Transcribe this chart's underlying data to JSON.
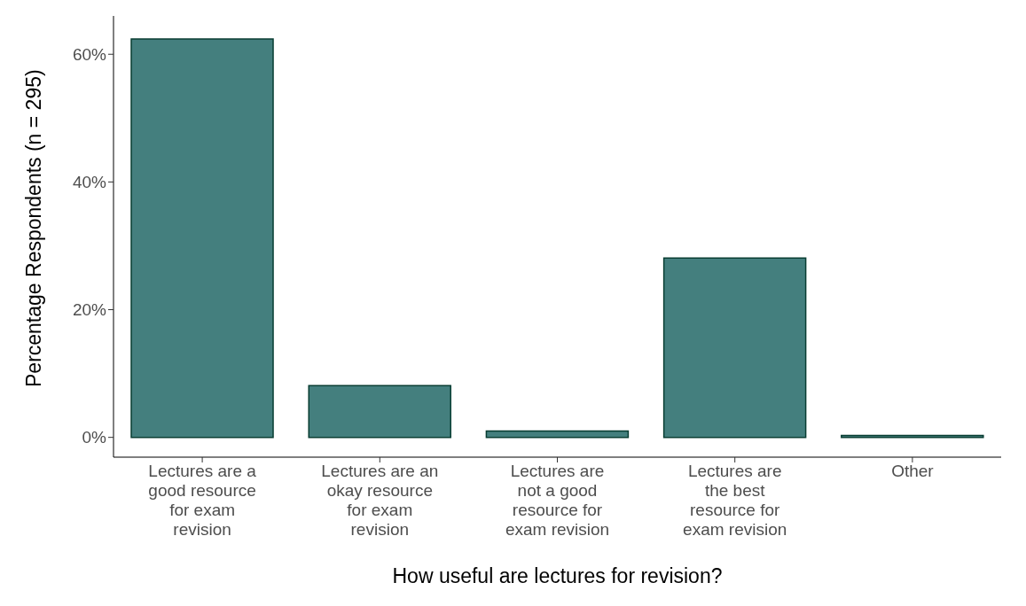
{
  "chart_data": {
    "type": "bar",
    "xlabel": "How useful are lectures for revision?",
    "ylabel": "Percentage Respondents (n = 295)",
    "categories": [
      "Lectures are a good resource for exam revision",
      "Lectures are an okay resource for exam revision",
      "Lectures are not a good resource for exam revision",
      "Lectures are the best resource for exam revision",
      "Other"
    ],
    "values": [
      62.4,
      8.1,
      1.0,
      28.1,
      0.3
    ],
    "color": "#447f7e",
    "ylim": [
      -3.1,
      66
    ],
    "yticks": [
      {
        "value": 0,
        "label": "0%"
      },
      {
        "value": 20,
        "label": "20%"
      },
      {
        "value": 40,
        "label": "40%"
      },
      {
        "value": 60,
        "label": "60%"
      }
    ],
    "grid": false,
    "legend": false
  }
}
